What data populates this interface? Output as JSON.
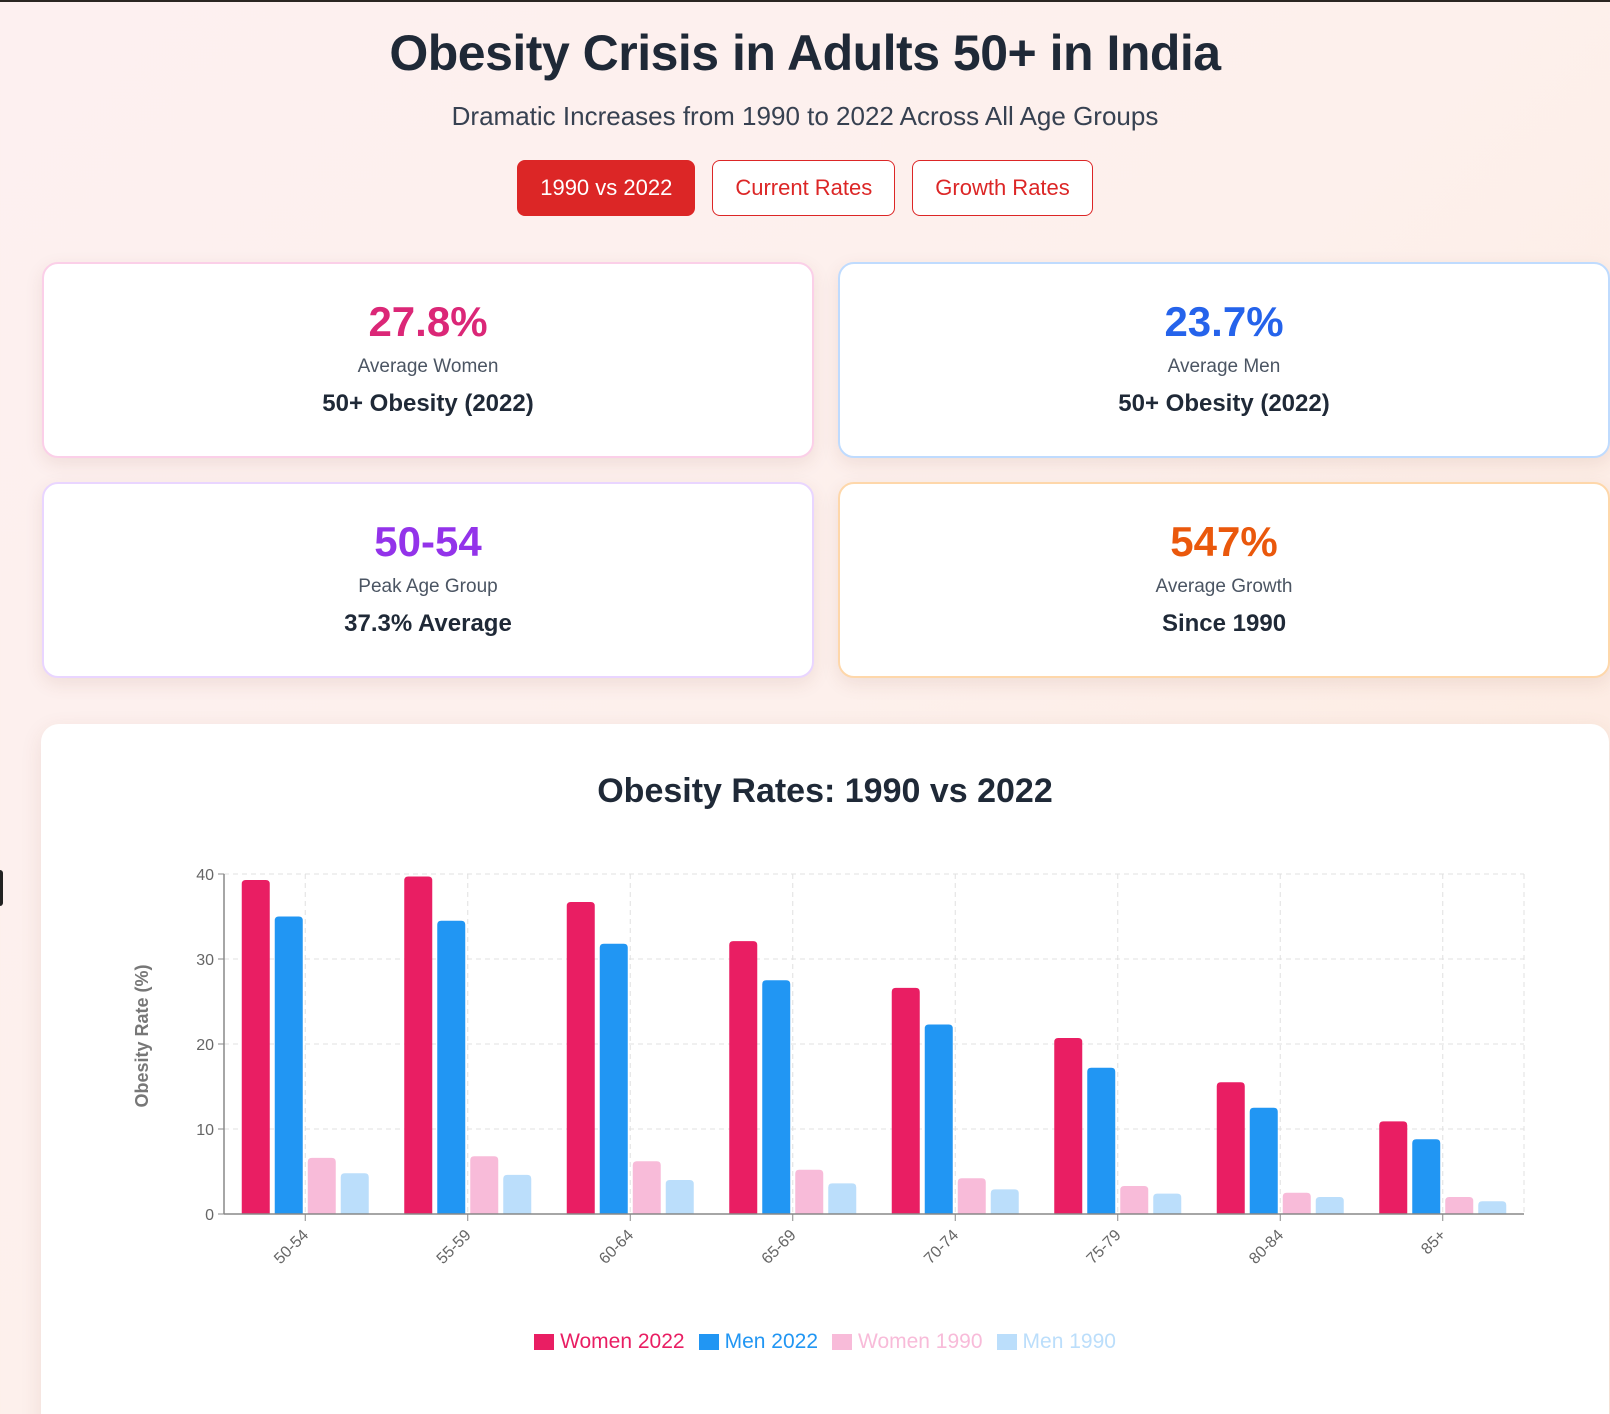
{
  "header": {
    "title": "Obesity Crisis in Adults 50+ in India",
    "subtitle": "Dramatic Increases from 1990 to 2022 Across All Age Groups"
  },
  "tabs": [
    {
      "label": "1990 vs 2022",
      "active": true
    },
    {
      "label": "Current Rates",
      "active": false
    },
    {
      "label": "Growth Rates",
      "active": false
    }
  ],
  "stats": [
    {
      "value": "27.8%",
      "label": "Average Women",
      "sub": "50+ Obesity (2022)",
      "color": "#db2777",
      "border": "#fbcfe8"
    },
    {
      "value": "23.7%",
      "label": "Average Men",
      "sub": "50+ Obesity (2022)",
      "color": "#2563eb",
      "border": "#bfdbfe"
    },
    {
      "value": "50-54",
      "label": "Peak Age Group",
      "sub": "37.3% Average",
      "color": "#9333ea",
      "border": "#e9d5ff"
    },
    {
      "value": "547%",
      "label": "Average Growth",
      "sub": "Since 1990",
      "color": "#ea580c",
      "border": "#fed7aa"
    }
  ],
  "chart_data": {
    "type": "bar",
    "title": "Obesity Rates: 1990 vs 2022",
    "xlabel": "",
    "ylabel": "Obesity Rate (%)",
    "ylim": [
      0,
      40
    ],
    "yticks": [
      0,
      10,
      20,
      30,
      40
    ],
    "grid": true,
    "legend": "bottom",
    "categories": [
      "50-54",
      "55-59",
      "60-64",
      "65-69",
      "70-74",
      "75-79",
      "80-84",
      "85+"
    ],
    "series": [
      {
        "name": "Women 2022",
        "color": "#e91e63",
        "values": [
          39.3,
          39.7,
          36.7,
          32.1,
          26.6,
          20.7,
          15.5,
          10.9
        ]
      },
      {
        "name": "Men 2022",
        "color": "#2196f3",
        "values": [
          35.0,
          34.5,
          31.8,
          27.5,
          22.3,
          17.2,
          12.5,
          8.8
        ]
      },
      {
        "name": "Women 1990",
        "color": "#f8bbd9",
        "values": [
          6.6,
          6.8,
          6.2,
          5.2,
          4.2,
          3.3,
          2.5,
          2.0
        ]
      },
      {
        "name": "Men 1990",
        "color": "#bbdefb",
        "values": [
          4.8,
          4.6,
          4.0,
          3.6,
          2.9,
          2.4,
          2.0,
          1.5
        ]
      }
    ]
  }
}
